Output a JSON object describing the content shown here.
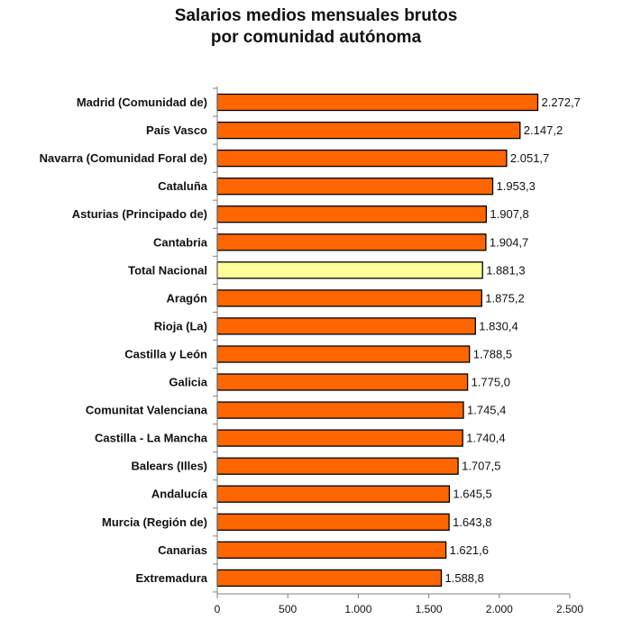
{
  "chart_data": {
    "type": "bar",
    "orientation": "horizontal",
    "title": [
      "Salarios medios mensuales brutos",
      "por comunidad autónoma"
    ],
    "categories": [
      "Madrid (Comunidad de)",
      "País Vasco",
      "Navarra (Comunidad Foral de)",
      "Cataluña",
      "Asturias (Principado de)",
      "Cantabria",
      "Total Nacional",
      "Aragón",
      "Rioja (La)",
      "Castilla y León",
      "Galicia",
      "Comunitat Valenciana",
      "Castilla - La Mancha",
      "Balears (Illes)",
      "Andalucía",
      "Murcia (Región de)",
      "Canarias",
      "Extremadura"
    ],
    "values": [
      2272.7,
      2147.2,
      2051.7,
      1953.3,
      1907.8,
      1904.7,
      1881.3,
      1875.2,
      1830.4,
      1788.5,
      1775.0,
      1745.4,
      1740.4,
      1707.5,
      1645.5,
      1643.8,
      1621.6,
      1588.8
    ],
    "value_labels": [
      "2.272,7",
      "2.147,2",
      "2.051,7",
      "1.953,3",
      "1.907,8",
      "1.904,7",
      "1.881,3",
      "1.875,2",
      "1.830,4",
      "1.788,5",
      "1.775,0",
      "1.745,4",
      "1.740,4",
      "1.707,5",
      "1.645,5",
      "1.643,8",
      "1.621,6",
      "1.588,8"
    ],
    "highlight_category": "Total Nacional",
    "xlim": [
      0,
      2500
    ],
    "x_ticks": [
      0,
      500,
      1000,
      1500,
      2000,
      2500
    ],
    "x_tick_labels": [
      "0",
      "500",
      "1.000",
      "1.500",
      "2.000",
      "2.500"
    ],
    "grid": false,
    "legend": "none",
    "colors": {
      "bar": "#ff6600",
      "highlight_bar": "#ffff99",
      "bar_stroke": "#000000",
      "axis": "#808080"
    }
  }
}
